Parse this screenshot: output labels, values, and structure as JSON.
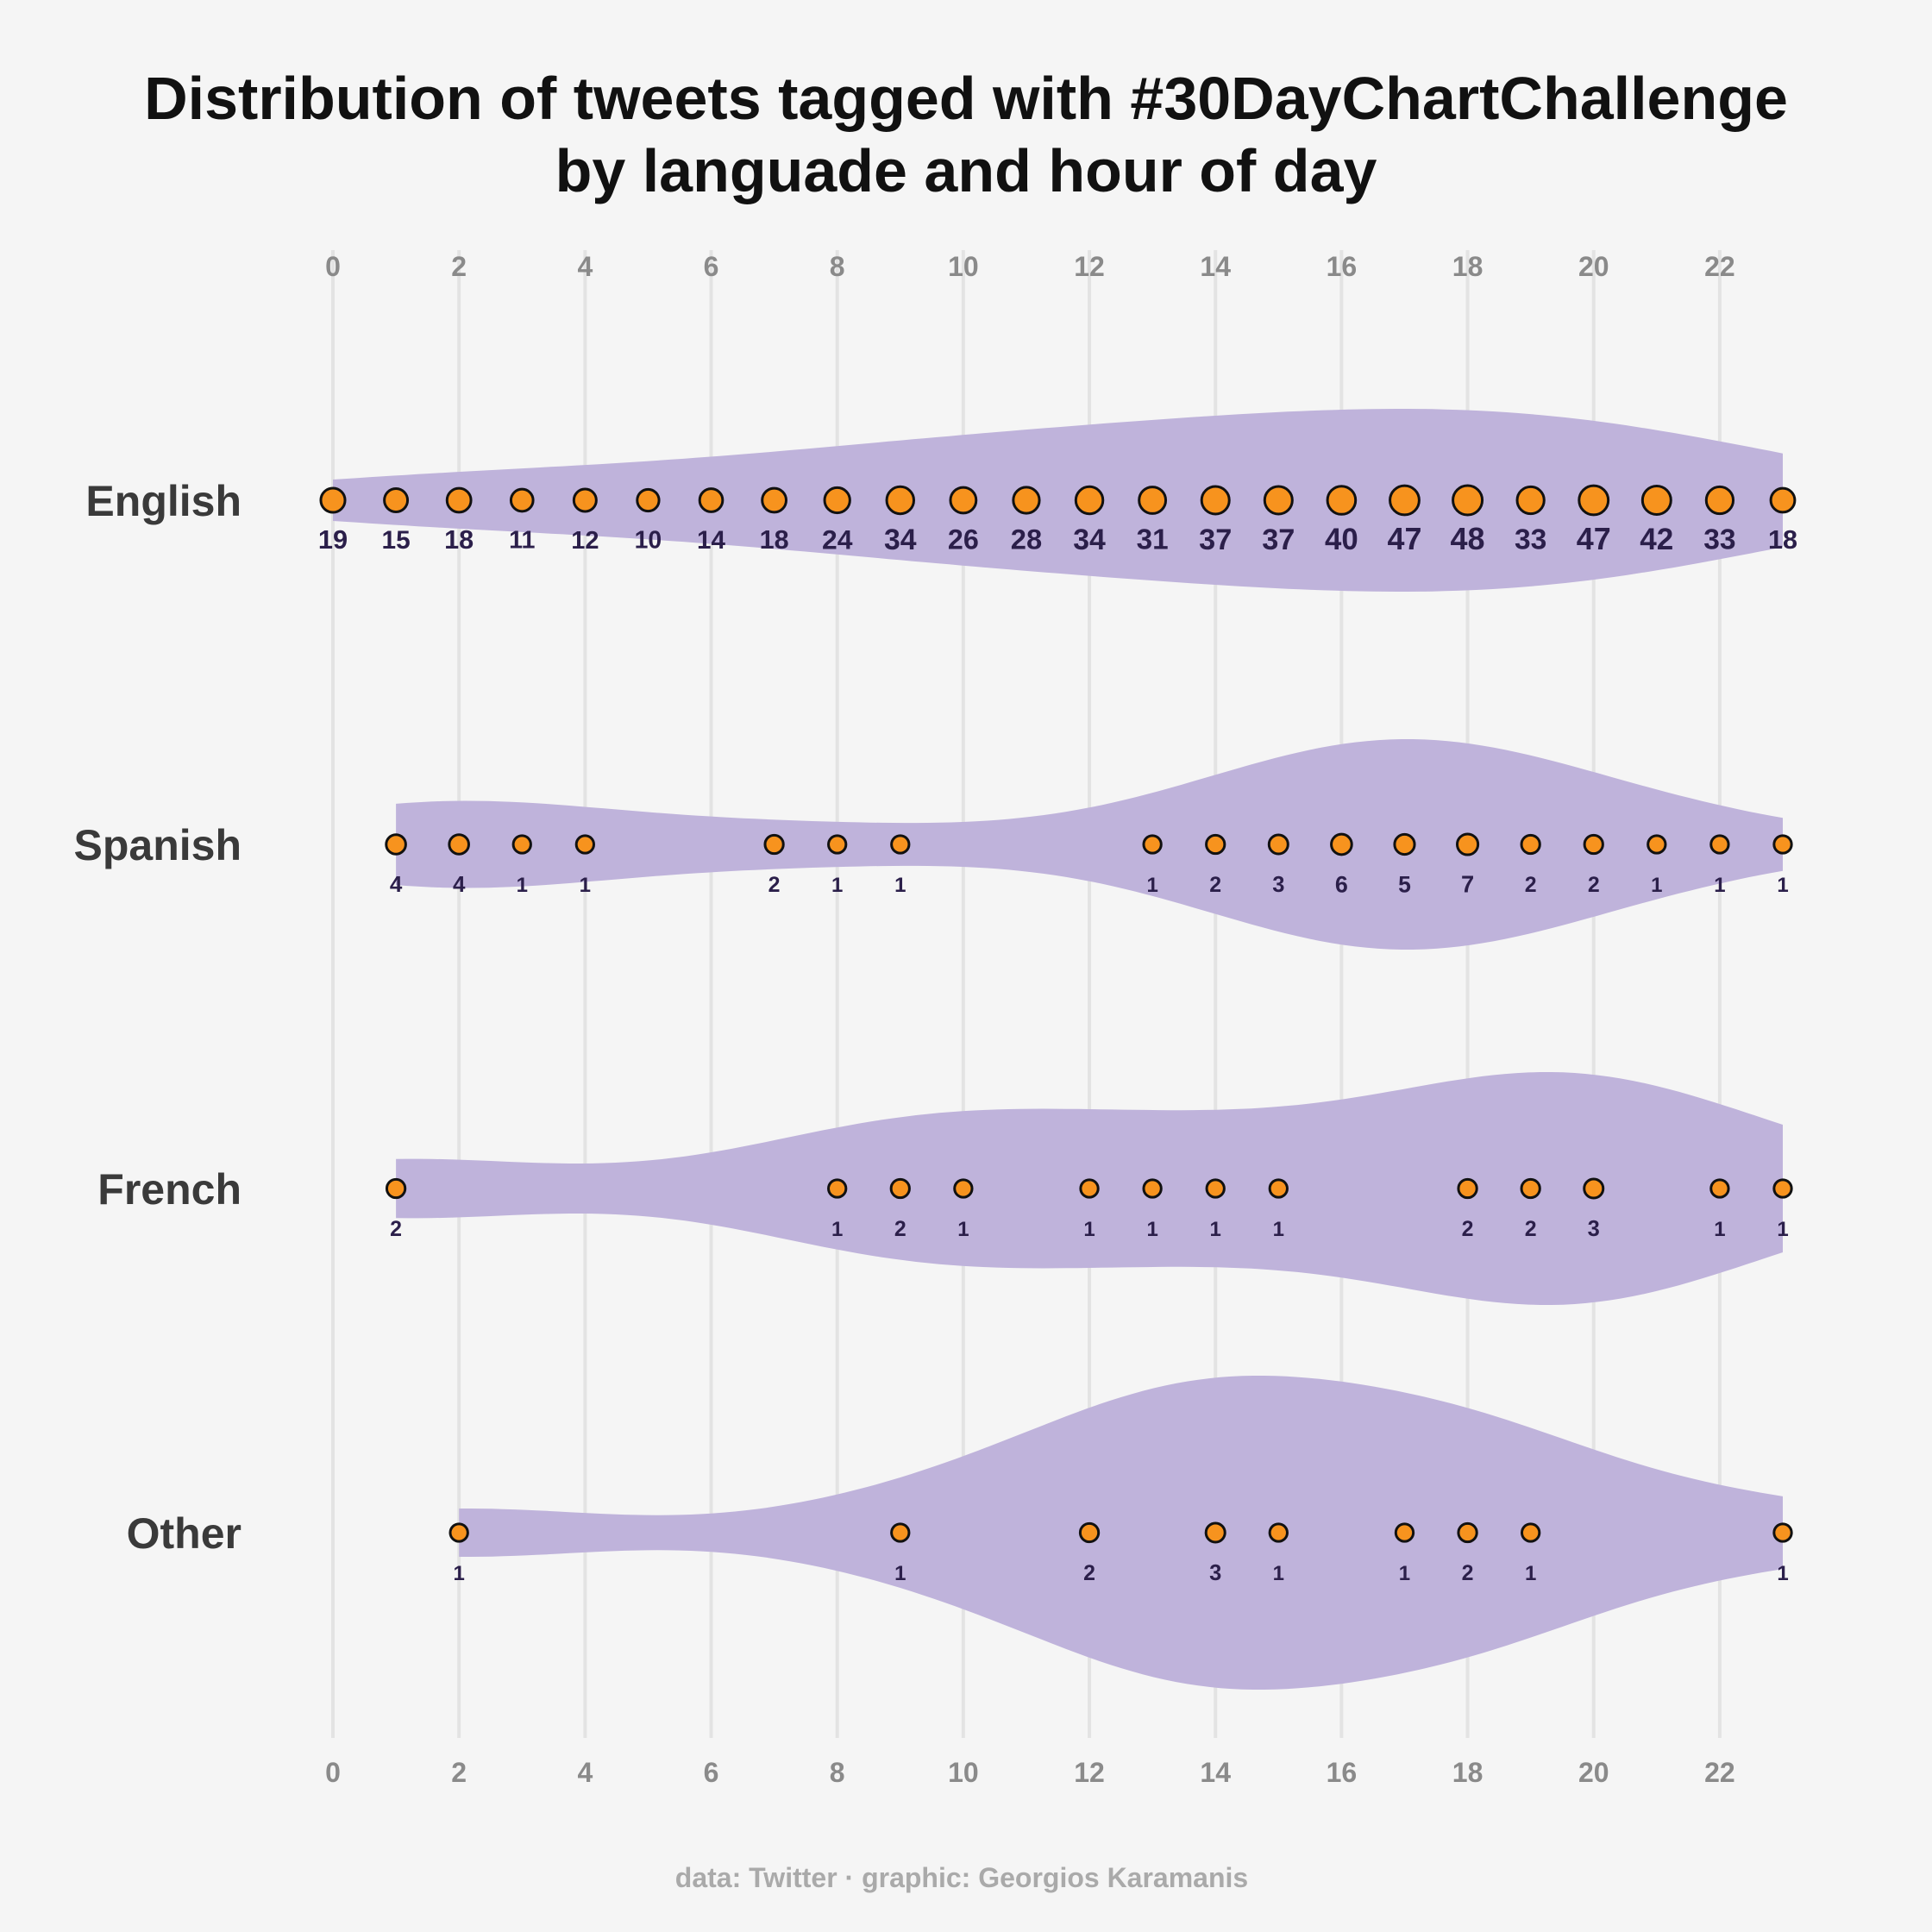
{
  "chart_data": {
    "type": "violin-dot",
    "title": "Distribution of tweets tagged with #30DayChartChallenge",
    "subtitle": "by languade and hour of day",
    "caption": "data: Twitter · graphic: Georgios Karamanis",
    "x_ticks": [
      0,
      2,
      4,
      6,
      8,
      10,
      12,
      14,
      16,
      18,
      20,
      22
    ],
    "xlim": [
      0,
      23
    ],
    "grid": true,
    "colors": {
      "violin": "#bfb3db",
      "dot": "#f7931e",
      "dot_stroke": "#111111",
      "value_label": "#2b1f4a",
      "gridline": "#e3e3e3",
      "background": "#f5f5f5"
    },
    "series": [
      {
        "name": "English",
        "hours": [
          0,
          1,
          2,
          3,
          4,
          5,
          6,
          7,
          8,
          9,
          10,
          11,
          12,
          13,
          14,
          15,
          16,
          17,
          18,
          19,
          20,
          21,
          22,
          23
        ],
        "counts": [
          19,
          15,
          18,
          11,
          12,
          10,
          14,
          18,
          24,
          34,
          26,
          28,
          34,
          31,
          37,
          37,
          40,
          47,
          48,
          33,
          47,
          42,
          33,
          18
        ]
      },
      {
        "name": "Spanish",
        "hours": [
          1,
          2,
          3,
          4,
          7,
          8,
          9,
          13,
          14,
          15,
          16,
          17,
          18,
          19,
          20,
          21,
          22,
          23
        ],
        "counts": [
          4,
          4,
          1,
          1,
          2,
          1,
          1,
          1,
          2,
          3,
          6,
          5,
          7,
          2,
          2,
          1,
          1,
          1
        ]
      },
      {
        "name": "French",
        "hours": [
          1,
          8,
          9,
          10,
          12,
          13,
          14,
          15,
          18,
          19,
          20,
          22,
          23
        ],
        "counts": [
          2,
          1,
          2,
          1,
          1,
          1,
          1,
          1,
          2,
          2,
          3,
          1,
          1
        ]
      },
      {
        "name": "Other",
        "hours": [
          2,
          9,
          12,
          14,
          15,
          17,
          18,
          19,
          23
        ],
        "counts": [
          1,
          1,
          2,
          3,
          1,
          1,
          2,
          1,
          1
        ]
      }
    ]
  }
}
